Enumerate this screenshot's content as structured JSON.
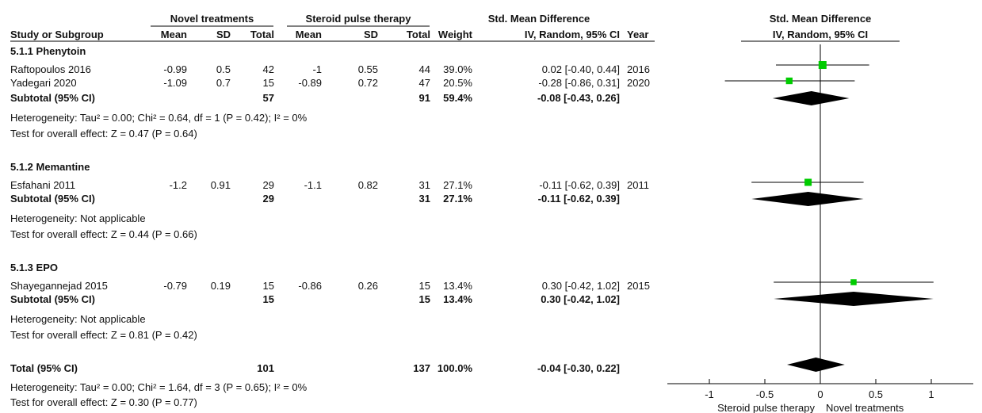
{
  "header": {
    "group1": "Novel treatments",
    "group2": "Steroid pulse therapy",
    "smd_left": "Std. Mean Difference",
    "smd_right": "Std. Mean Difference",
    "columns": [
      "Study or Subgroup",
      "Mean",
      "SD",
      "Total",
      "Mean",
      "SD",
      "Total",
      "Weight",
      "IV, Random, 95% CI",
      "Year"
    ],
    "plot_method": "IV, Random, 95% CI"
  },
  "subgroups": [
    {
      "title": "5.1.1 Phenytoin",
      "studies": [
        {
          "name": "Raftopoulos 2016",
          "m1": "-0.99",
          "sd1": "0.5",
          "n1": "42",
          "m2": "-1",
          "sd2": "0.55",
          "n2": "44",
          "weight": "39.0%",
          "ci": "0.02 [-0.40, 0.44]",
          "year": "2016"
        },
        {
          "name": "Yadegari 2020",
          "m1": "-1.09",
          "sd1": "0.7",
          "n1": "15",
          "m2": "-0.89",
          "sd2": "0.72",
          "n2": "47",
          "weight": "20.5%",
          "ci": "-0.28 [-0.86, 0.31]",
          "year": "2020"
        }
      ],
      "subtotal": {
        "label": "Subtotal (95% CI)",
        "n1": "57",
        "n2": "91",
        "weight": "59.4%",
        "ci": "-0.08 [-0.43, 0.26]"
      },
      "heterogeneity": "Heterogeneity: Tau² = 0.00; Chi² = 0.64, df = 1 (P = 0.42); I² = 0%",
      "overall": "Test for overall effect: Z = 0.47 (P = 0.64)"
    },
    {
      "title": "5.1.2 Memantine",
      "studies": [
        {
          "name": "Esfahani 2011",
          "m1": "-1.2",
          "sd1": "0.91",
          "n1": "29",
          "m2": "-1.1",
          "sd2": "0.82",
          "n2": "31",
          "weight": "27.1%",
          "ci": "-0.11 [-0.62, 0.39]",
          "year": "2011"
        }
      ],
      "subtotal": {
        "label": "Subtotal (95% CI)",
        "n1": "29",
        "n2": "31",
        "weight": "27.1%",
        "ci": "-0.11 [-0.62, 0.39]"
      },
      "heterogeneity": "Heterogeneity: Not applicable",
      "overall": "Test for overall effect: Z = 0.44 (P = 0.66)"
    },
    {
      "title": "5.1.3 EPO",
      "studies": [
        {
          "name": "Shayegannejad 2015",
          "m1": "-0.79",
          "sd1": "0.19",
          "n1": "15",
          "m2": "-0.86",
          "sd2": "0.26",
          "n2": "15",
          "weight": "13.4%",
          "ci": "0.30 [-0.42, 1.02]",
          "year": "2015"
        }
      ],
      "subtotal": {
        "label": "Subtotal (95% CI)",
        "n1": "15",
        "n2": "15",
        "weight": "13.4%",
        "ci": "0.30 [-0.42, 1.02]"
      },
      "heterogeneity": "Heterogeneity: Not applicable",
      "overall": "Test for overall effect: Z = 0.81 (P = 0.42)"
    }
  ],
  "total": {
    "label": "Total (95% CI)",
    "n1": "101",
    "n2": "137",
    "weight": "100.0%",
    "ci": "-0.04 [-0.30, 0.22]",
    "heterogeneity": "Heterogeneity: Tau² = 0.00; Chi² = 1.64, df = 3 (P = 0.65); I² = 0%",
    "overall": "Test for overall effect: Z = 0.30 (P = 0.77)"
  },
  "chart_data": {
    "type": "forest",
    "xlim": [
      -1.2,
      1.2
    ],
    "xticks": [
      -1,
      -0.5,
      0,
      0.5,
      1
    ],
    "xtick_labels": [
      "-1",
      "-0.5",
      "0",
      "0.5",
      "1"
    ],
    "favours_left": "Steroid pulse therapy",
    "favours_right": "Novel treatments",
    "marker_color": "#00cc00",
    "studies": [
      {
        "name": "Raftopoulos 2016",
        "est": 0.02,
        "lo": -0.4,
        "hi": 0.44,
        "weight": 39.0
      },
      {
        "name": "Yadegari 2020",
        "est": -0.28,
        "lo": -0.86,
        "hi": 0.31,
        "weight": 20.5
      },
      {
        "name": "Esfahani 2011",
        "est": -0.11,
        "lo": -0.62,
        "hi": 0.39,
        "weight": 27.1
      },
      {
        "name": "Shayegannejad 2015",
        "est": 0.3,
        "lo": -0.42,
        "hi": 1.02,
        "weight": 13.4
      }
    ],
    "diamonds": [
      {
        "name": "Subtotal 5.1.1",
        "est": -0.08,
        "lo": -0.43,
        "hi": 0.26
      },
      {
        "name": "Subtotal 5.1.2",
        "est": -0.11,
        "lo": -0.62,
        "hi": 0.39
      },
      {
        "name": "Subtotal 5.1.3",
        "est": 0.3,
        "lo": -0.42,
        "hi": 1.02
      },
      {
        "name": "Total",
        "est": -0.04,
        "lo": -0.3,
        "hi": 0.22
      }
    ]
  }
}
